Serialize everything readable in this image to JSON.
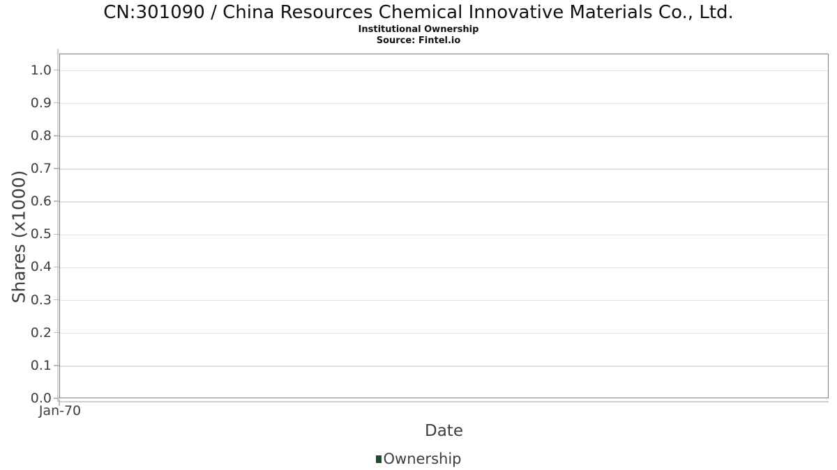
{
  "header": {
    "title": "CN:301090 / China Resources Chemical Innovative Materials Co., Ltd.",
    "subtitle": "Institutional Ownership",
    "source": "Source: Fintel.io"
  },
  "chart_data": {
    "type": "line",
    "title": "CN:301090 / China Resources Chemical Innovative Materials Co., Ltd.",
    "subtitle": "Institutional Ownership",
    "source": "Source: Fintel.io",
    "xlabel": "Date",
    "ylabel": "Shares (x1000)",
    "x_ticks": [
      "Jan-70"
    ],
    "y_ticks": [
      0.0,
      0.1,
      0.2,
      0.3,
      0.4,
      0.5,
      0.6,
      0.7,
      0.8,
      0.9,
      1.0
    ],
    "ylim": [
      0,
      1.05
    ],
    "grid": true,
    "legend": {
      "position": "bottom-center",
      "entries": [
        {
          "label": "Ownership",
          "color": "#1e4b2c"
        }
      ]
    },
    "series": [
      {
        "name": "Ownership",
        "x": [],
        "values": []
      }
    ]
  },
  "colors": {
    "legend_marker": "#1e4b2c",
    "plot_border": "#7e7e7e",
    "gridline": "#e2e2e2",
    "axis_line": "#cfcfcf",
    "tick_mark": "#b9b9b9",
    "label_text": "#3d3d3d",
    "title_text": "#111111"
  }
}
